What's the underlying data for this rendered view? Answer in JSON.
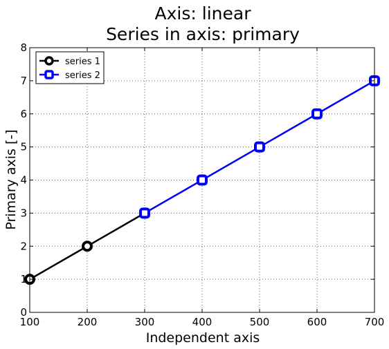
{
  "chart_data": {
    "type": "line",
    "title": "Axis: linear",
    "subtitle": "Series in axis: primary",
    "xlabel": "Independent axis",
    "ylabel": "Primary axis [-]",
    "xlim": [
      100,
      700
    ],
    "ylim": [
      0,
      8
    ],
    "xticks": [
      100,
      200,
      300,
      400,
      500,
      600,
      700
    ],
    "yticks": [
      0,
      1,
      2,
      3,
      4,
      5,
      6,
      7,
      8
    ],
    "grid": true,
    "legend_position": "top-left",
    "series": [
      {
        "name": "series 1",
        "color": "#000000",
        "marker": "circle-hollow",
        "x": [
          100,
          200,
          300
        ],
        "y": [
          1,
          2,
          3
        ]
      },
      {
        "name": "series 2",
        "color": "#0000ff",
        "marker": "square-hollow",
        "x": [
          300,
          400,
          500,
          600,
          700
        ],
        "y": [
          3,
          4,
          5,
          6,
          7
        ]
      }
    ]
  }
}
